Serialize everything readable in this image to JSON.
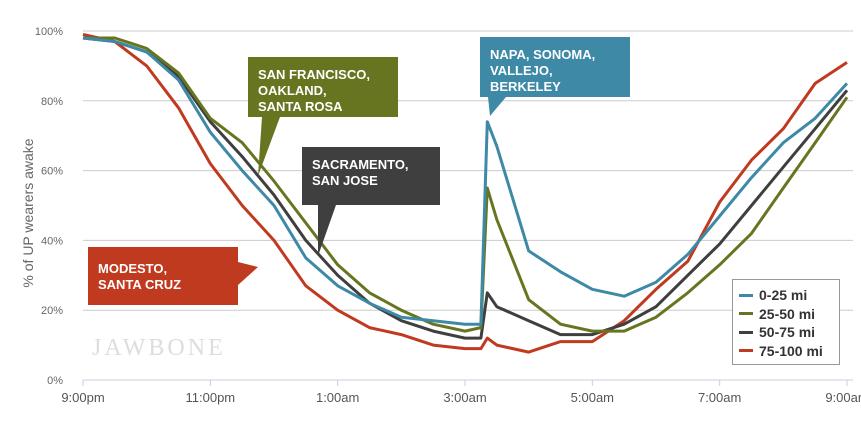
{
  "chart_data": {
    "type": "line",
    "title": "",
    "xlabel": "",
    "ylabel": "% of UP wearers awake",
    "ylim": [
      0,
      100
    ],
    "xlim_hours_after_9pm": [
      0,
      12
    ],
    "y_ticks": [
      "0%",
      "20%",
      "40%",
      "60%",
      "80%",
      "100%"
    ],
    "x_ticks": [
      "9:00pm",
      "11:00pm",
      "1:00am",
      "3:00am",
      "5:00am",
      "7:00am",
      "9:00am"
    ],
    "grid": true,
    "legend_position": "bottom-right",
    "x": [
      0,
      0.5,
      1,
      1.5,
      2,
      2.5,
      3,
      3.5,
      4,
      4.5,
      5,
      5.5,
      6,
      6.25,
      6.35,
      6.5,
      7,
      7.5,
      8,
      8.5,
      9,
      9.5,
      10,
      10.5,
      11,
      11.5,
      12
    ],
    "series": [
      {
        "name": "0-25 mi",
        "color": "#3d89a6",
        "values": [
          98,
          97,
          94,
          86,
          71,
          60,
          50,
          35,
          27,
          22,
          18,
          17,
          16,
          16,
          74,
          67,
          37,
          31,
          26,
          24,
          28,
          36,
          47,
          58,
          68,
          75,
          85
        ]
      },
      {
        "name": "25-50 mi",
        "color": "#687520",
        "values": [
          98,
          98,
          95,
          88,
          75,
          68,
          57,
          45,
          33,
          25,
          20,
          16,
          14,
          15,
          55,
          46,
          23,
          16,
          14,
          14,
          18,
          25,
          33,
          42,
          55,
          68,
          81
        ]
      },
      {
        "name": "50-75 mi",
        "color": "#3f3f3f",
        "values": [
          98,
          97,
          94,
          87,
          74,
          64,
          53,
          40,
          30,
          22,
          17,
          14,
          12,
          12,
          25,
          21,
          17,
          13,
          13,
          16,
          21,
          30,
          39,
          50,
          61,
          72,
          83
        ]
      },
      {
        "name": "75-100 mi",
        "color": "#c03a20",
        "values": [
          99,
          97,
          90,
          78,
          62,
          50,
          40,
          27,
          20,
          15,
          13,
          10,
          9,
          9,
          12,
          10,
          8,
          11,
          11,
          17,
          26,
          34,
          51,
          63,
          72,
          85,
          91
        ]
      }
    ],
    "annotations": [
      {
        "text": "SAN FRANCISCO, OAKLAND, SANTA ROSA",
        "lines": [
          "SAN FRANCISCO,",
          "OAKLAND,",
          "SANTA ROSA"
        ],
        "color": "#687520"
      },
      {
        "text": "SACRAMENTO, SAN JOSE",
        "lines": [
          "SACRAMENTO,",
          "SAN JOSE"
        ],
        "color": "#3f3f3f"
      },
      {
        "text": "NAPA, SONOMA, VALLEJO, BERKELEY",
        "lines": [
          "NAPA, SONOMA,",
          "VALLEJO,",
          "BERKELEY"
        ],
        "color": "#3d89a6"
      },
      {
        "text": "MODESTO, SANTA CRUZ",
        "lines": [
          "MODESTO,",
          "SANTA CRUZ"
        ],
        "color": "#c03a20"
      }
    ],
    "watermark": "JAWBONE"
  }
}
